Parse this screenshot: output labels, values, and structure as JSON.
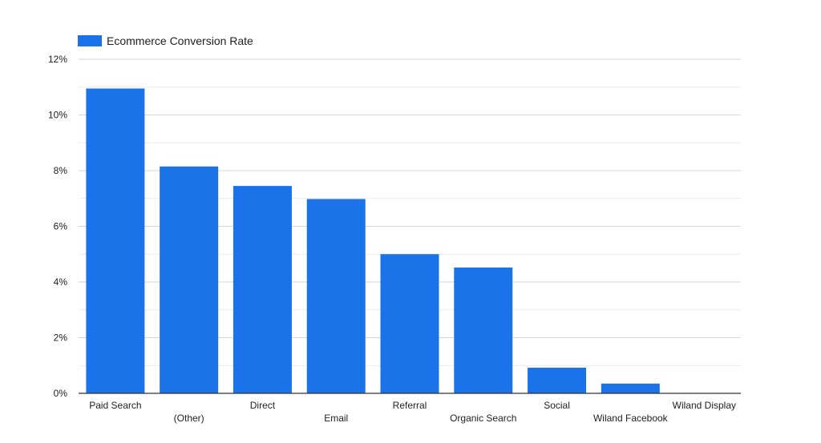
{
  "chart_data": {
    "type": "bar",
    "categories": [
      "Paid Search",
      "(Other)",
      "Direct",
      "Email",
      "Referral",
      "Organic Search",
      "Social",
      "Wiland Facebook",
      "Wiland Display"
    ],
    "series": [
      {
        "name": "Ecommerce Conversion Rate",
        "values": [
          10.95,
          8.15,
          7.45,
          6.98,
          5.0,
          4.52,
          0.92,
          0.35,
          0.0
        ],
        "color": "#1a73e8"
      }
    ],
    "yticks": [
      "0%",
      "2%",
      "4%",
      "6%",
      "8%",
      "10%",
      "12%"
    ],
    "ylim": [
      0,
      12
    ],
    "grid": true,
    "legend_position": "top-left",
    "label_placement": "staggered"
  }
}
